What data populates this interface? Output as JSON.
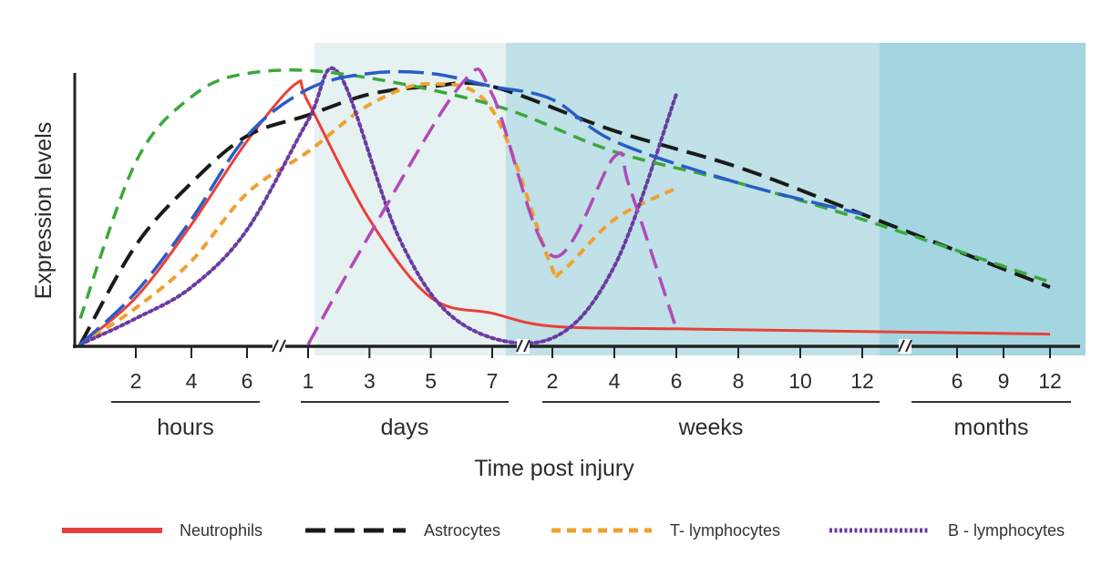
{
  "chart_data": {
    "type": "line",
    "title": "",
    "xlabel": "Time post injury",
    "ylabel": "Expression levels",
    "ylim": [
      0,
      100
    ],
    "grid": false,
    "time_groups": [
      {
        "label": "hours",
        "ticks": [
          "2",
          "4",
          "6"
        ]
      },
      {
        "label": "days",
        "ticks": [
          "1",
          "3",
          "5",
          "7"
        ]
      },
      {
        "label": "weeks",
        "ticks": [
          "2",
          "4",
          "6",
          "8",
          "10",
          "12"
        ]
      },
      {
        "label": "months",
        "ticks": [
          "6",
          "9",
          "12"
        ]
      }
    ],
    "x_scale_note": "axis runs hours 0-6, break, days 1-7, break, weeks 2-12, break, months 6-12; x values below are in hours/days/weeks/months of their segment",
    "background_bands": [
      {
        "from": "day 1",
        "to": "day 7",
        "color": "#e6f1f1"
      },
      {
        "from": "day 7",
        "to": "week 12",
        "color": "#bfe1e7"
      },
      {
        "from": "week 12",
        "to": "month 12",
        "color": "#a3d6e0"
      }
    ],
    "series": [
      {
        "name": "Neutrophils",
        "color": "#e8403a",
        "dash": "solid",
        "width": 3,
        "points": [
          [
            "h0",
            0
          ],
          [
            "h2",
            18
          ],
          [
            "h4",
            46
          ],
          [
            "h6",
            78
          ],
          [
            "d0.6",
            100
          ],
          [
            "d1",
            93
          ],
          [
            "d3",
            48
          ],
          [
            "d5",
            18
          ],
          [
            "d7",
            12
          ],
          [
            "w2",
            7
          ],
          [
            "w6",
            6
          ],
          [
            "w12",
            5
          ],
          [
            "m12",
            4
          ]
        ]
      },
      {
        "name": "Astrocytes",
        "color": "#1a1a1a",
        "dash": "long",
        "width": 4,
        "points": [
          [
            "h0",
            0
          ],
          [
            "h2",
            38
          ],
          [
            "h4",
            62
          ],
          [
            "h6",
            80
          ],
          [
            "d1",
            88
          ],
          [
            "d3",
            96
          ],
          [
            "d5",
            99
          ],
          [
            "d7",
            99
          ],
          [
            "w4",
            82
          ],
          [
            "w8",
            68
          ],
          [
            "w12",
            50
          ],
          [
            "m12",
            22
          ]
        ]
      },
      {
        "name": "T- lymphocytes",
        "color": "#f0a030",
        "dash": "short",
        "width": 4,
        "points": [
          [
            "h0",
            0
          ],
          [
            "h2",
            14
          ],
          [
            "h4",
            32
          ],
          [
            "h6",
            58
          ],
          [
            "d1",
            74
          ],
          [
            "d3",
            92
          ],
          [
            "d5",
            100
          ],
          [
            "d7",
            90
          ],
          [
            "w1.9",
            32
          ],
          [
            "w2.3",
            28
          ],
          [
            "w4",
            48
          ],
          [
            "w6",
            60
          ]
        ]
      },
      {
        "name": "B - lymphocytes",
        "color": "#6a3aa0",
        "dash": "dot",
        "width": 4,
        "points": [
          [
            "h0",
            0
          ],
          [
            "h2",
            10
          ],
          [
            "h4",
            22
          ],
          [
            "h6",
            44
          ],
          [
            "d1",
            86
          ],
          [
            "d2",
            104
          ],
          [
            "d4",
            40
          ],
          [
            "d6",
            8
          ],
          [
            "w1.9",
            2
          ],
          [
            "w4",
            30
          ],
          [
            "w6",
            96
          ]
        ]
      },
      {
        "color": "#3aa83a",
        "dash": "medium",
        "width": 3.5,
        "points": [
          [
            "h0",
            10
          ],
          [
            "h2",
            70
          ],
          [
            "h4",
            95
          ],
          [
            "h6",
            104
          ],
          [
            "d2",
            104
          ],
          [
            "d7",
            92
          ],
          [
            "w4",
            74
          ],
          [
            "w8",
            62
          ],
          [
            "w12",
            48
          ],
          [
            "m12",
            24
          ]
        ]
      },
      {
        "color": "#2a5cc8",
        "dash": "xlong",
        "width": 3.5,
        "points": [
          [
            "h0",
            0
          ],
          [
            "h2",
            20
          ],
          [
            "h4",
            48
          ],
          [
            "h6",
            80
          ],
          [
            "d1",
            98
          ],
          [
            "d3",
            104
          ],
          [
            "d5",
            104
          ],
          [
            "d7",
            99
          ],
          [
            "w2",
            94
          ],
          [
            "w4",
            78
          ],
          [
            "w8",
            62
          ],
          [
            "w12",
            50
          ]
        ]
      },
      {
        "color": "#b04ab8",
        "dash": "long",
        "width": 3.5,
        "points": [
          [
            "d1",
            0
          ],
          [
            "d3",
            42
          ],
          [
            "d6",
            100
          ],
          [
            "d7",
            96
          ],
          [
            "w2",
            34
          ],
          [
            "w4",
            72
          ],
          [
            "w4.5",
            60
          ],
          [
            "w6",
            6
          ]
        ]
      }
    ],
    "legend": {
      "placement": "bottom",
      "entries": [
        "Neutrophils",
        "Astrocytes",
        "T- lymphocytes",
        "B - lymphocytes"
      ]
    }
  }
}
